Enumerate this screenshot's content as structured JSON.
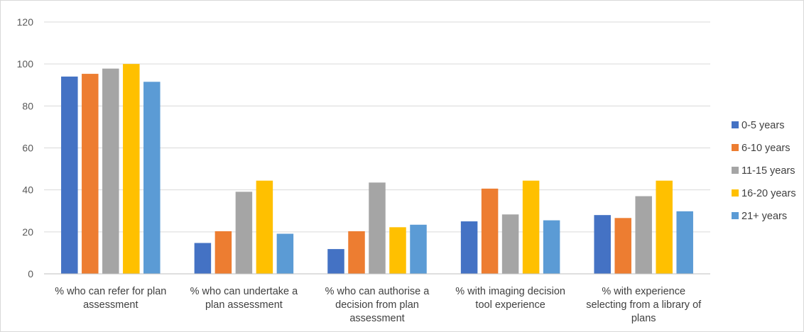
{
  "chart_data": {
    "type": "bar",
    "title": "",
    "xlabel": "",
    "ylabel": "",
    "ylim": [
      0,
      120
    ],
    "yticks": [
      0,
      20,
      40,
      60,
      80,
      100,
      120
    ],
    "grid": true,
    "legend_position": "right",
    "categories": [
      [
        "%  who can refer for plan",
        "assessment"
      ],
      [
        "%  who can undertake a",
        "plan assessment"
      ],
      [
        "% who can authorise a",
        "decision from plan",
        "assessment"
      ],
      [
        "%  with imaging decision",
        "tool experience"
      ],
      [
        "%  with experience",
        "selecting from a library of",
        "plans"
      ]
    ],
    "series": [
      {
        "name": "0-5 years",
        "color": "#4472C4",
        "values": [
          94,
          14.7,
          11.8,
          25,
          28
        ]
      },
      {
        "name": "6-10 years",
        "color": "#ED7D31",
        "values": [
          95.3,
          20.3,
          20.3,
          40.6,
          26.6
        ]
      },
      {
        "name": "11-15 years",
        "color": "#A5A5A5",
        "values": [
          97.8,
          39.1,
          43.5,
          28.3,
          37
        ]
      },
      {
        "name": "16-20 years",
        "color": "#FFC000",
        "values": [
          100,
          44.4,
          22.2,
          44.4,
          44.4
        ]
      },
      {
        "name": "21+ years",
        "color": "#5B9BD5",
        "values": [
          91.5,
          19.1,
          23.4,
          25.5,
          29.8
        ]
      }
    ]
  }
}
